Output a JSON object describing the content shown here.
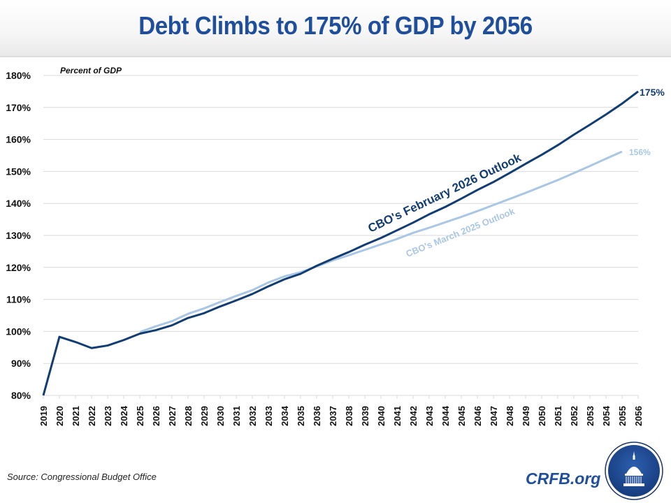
{
  "header": {
    "title": "Debt Climbs to 175% of GDP by 2056"
  },
  "footer": {
    "source": "Source: Congressional Budget Office",
    "brand": "CRFB.org"
  },
  "logo": {
    "icon": "capitol-dome-icon"
  },
  "colors": {
    "title": "#1f4e9c",
    "feb2026": "#123d73",
    "mar2025": "#a9c7e4",
    "grid": "#d9d9d9"
  },
  "chart_data": {
    "type": "line",
    "title": "Debt Climbs to 175% of GDP by 2056",
    "ylabel": "Percent of GDP",
    "xlabel": "",
    "ylim": [
      80,
      180
    ],
    "yticks": [
      80,
      90,
      100,
      110,
      120,
      130,
      140,
      150,
      160,
      170,
      180
    ],
    "ytick_labels": [
      "80%",
      "90%",
      "100%",
      "110%",
      "120%",
      "130%",
      "140%",
      "150%",
      "160%",
      "170%",
      "180%"
    ],
    "grid": true,
    "x": [
      2019,
      2020,
      2021,
      2022,
      2023,
      2024,
      2025,
      2026,
      2027,
      2028,
      2029,
      2030,
      2031,
      2032,
      2033,
      2034,
      2035,
      2036,
      2037,
      2038,
      2039,
      2040,
      2041,
      2042,
      2043,
      2044,
      2045,
      2046,
      2047,
      2048,
      2049,
      2050,
      2051,
      2052,
      2053,
      2054,
      2055,
      2056
    ],
    "series": [
      {
        "name": "CBO's March 2025 Outlook",
        "start_year": 2025,
        "values": [
          99.8,
          101.6,
          103.2,
          105.5,
          107.2,
          109.2,
          111.1,
          112.9,
          115.3,
          117.2,
          118.5,
          120.3,
          122.2,
          123.8,
          125.5,
          127.2,
          128.9,
          130.8,
          132.4,
          134.1,
          135.8,
          137.6,
          139.5,
          141.4,
          143.3,
          145.3,
          147.3,
          149.5,
          151.7,
          154.0,
          156.2
        ],
        "end_label": "156%"
      },
      {
        "name": "CBO's February 2026 Outlook",
        "start_year": 2019,
        "values": [
          80.0,
          98.3,
          96.7,
          94.8,
          95.6,
          97.3,
          99.3,
          100.4,
          101.9,
          104.2,
          105.7,
          107.8,
          109.7,
          111.7,
          114.1,
          116.3,
          118.0,
          120.5,
          122.7,
          124.8,
          127.1,
          129.2,
          131.6,
          134.0,
          136.6,
          138.9,
          141.5,
          144.2,
          146.7,
          149.5,
          152.4,
          155.2,
          158.2,
          161.5,
          164.6,
          167.8,
          171.2,
          175.0
        ],
        "end_label": "175%"
      }
    ],
    "annotations": [
      {
        "text": "CBO's February 2026 Outlook",
        "series": "CBO's February 2026 Outlook"
      },
      {
        "text": "CBO's March 2025 Outlook",
        "series": "CBO's March 2025 Outlook"
      }
    ],
    "legend": "inline-labels"
  }
}
